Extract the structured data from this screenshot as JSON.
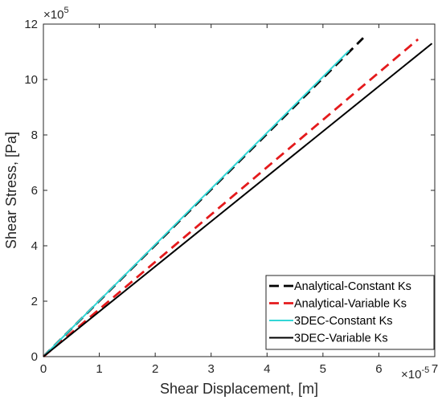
{
  "chart_data": {
    "type": "line",
    "xlabel": "Shear Displacement, [m]",
    "ylabel": "Shear Stress, [Pa]",
    "x_exponent_label": "×10",
    "x_exponent_power": "-5",
    "y_exponent_label": "×10",
    "y_exponent_power": "5",
    "xlim": [
      0,
      7
    ],
    "ylim": [
      0,
      12
    ],
    "xticks": [
      "0",
      "1",
      "2",
      "3",
      "4",
      "5",
      "6",
      "7"
    ],
    "yticks": [
      "0",
      "2",
      "4",
      "6",
      "8",
      "10",
      "12"
    ],
    "legend_position": "bottom-right",
    "series": [
      {
        "name": "Analytical-Constant Ks",
        "color": "#000000",
        "style": "dashed",
        "x": [
          0,
          5.72
        ],
        "y": [
          0,
          11.5
        ]
      },
      {
        "name": "Analytical-Variable Ks",
        "color": "#e41a1c",
        "style": "dashed",
        "x": [
          0,
          6.7
        ],
        "y": [
          0,
          11.45
        ]
      },
      {
        "name": "3DEC-Constant Ks",
        "color": "#33d6d6",
        "style": "solid",
        "x": [
          0,
          5.47
        ],
        "y": [
          0,
          11.05
        ]
      },
      {
        "name": "3DEC-Variable Ks",
        "color": "#000000",
        "style": "solid",
        "x": [
          0,
          6.95
        ],
        "y": [
          0,
          11.3
        ]
      }
    ]
  }
}
